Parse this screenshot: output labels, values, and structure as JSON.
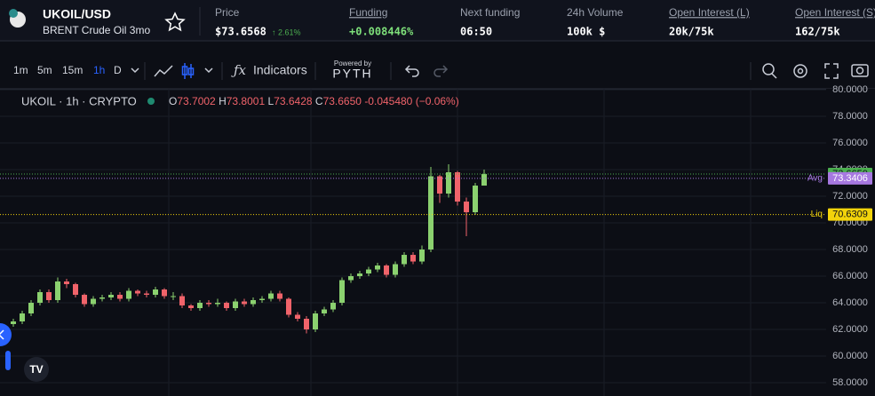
{
  "header": {
    "symbol": "UKOIL/USD",
    "subtitle": "BRENT Crude Oil 3mo",
    "stats": [
      {
        "label": "Price",
        "value": "$73.6568",
        "change": "↑ 2.61%"
      },
      {
        "label": "Funding",
        "value": "+0.008446%"
      },
      {
        "label": "Next funding",
        "value": "06:50"
      },
      {
        "label": "24h Volume",
        "value": "100k $"
      },
      {
        "label": "Open Interest (L)",
        "value": "20k/75k"
      },
      {
        "label": "Open Interest (S)",
        "value": "162/75k"
      }
    ]
  },
  "toolbar": {
    "intervals": [
      "1m",
      "5m",
      "15m",
      "1h",
      "D"
    ],
    "indicators": "Indicators",
    "powered_by": "Powered by",
    "provider": "PYTH"
  },
  "legend": {
    "symbol": "UKOIL · 1h · CRYPTO",
    "items": [
      {
        "key": "O",
        "value": "73.7002"
      },
      {
        "key": "H",
        "value": "73.8001"
      },
      {
        "key": "L",
        "value": "73.6428"
      },
      {
        "key": "C",
        "value": "73.6650"
      }
    ],
    "change": "-0.045480 (−0.06%)"
  },
  "chart_data": {
    "type": "candlestick",
    "up_color": "#8bd16f",
    "down_color": "#f0636a",
    "ylim": [
      57,
      80.07
    ],
    "yticks": [
      {
        "value": 58,
        "label": "58.0000"
      },
      {
        "value": 60,
        "label": "60.0000"
      },
      {
        "value": 62,
        "label": "62.0000"
      },
      {
        "value": 64,
        "label": "64.0000"
      },
      {
        "value": 66,
        "label": "66.0000"
      },
      {
        "value": 68,
        "label": "68.0000"
      },
      {
        "value": 70,
        "label": "70.0000"
      },
      {
        "value": 72,
        "label": "72.0000"
      },
      {
        "value": 74,
        "label": "74.0000"
      },
      {
        "value": 76,
        "label": "76.0000"
      },
      {
        "value": 78,
        "label": "78.0000"
      },
      {
        "value": 80,
        "label": "80.0000"
      }
    ],
    "grid": true,
    "open": [
      62.4,
      62.6,
      63.2,
      64.0,
      64.8,
      64.2,
      65.6,
      65.4,
      64.6,
      63.9,
      64.3,
      64.4,
      64.6,
      64.3,
      64.9,
      64.7,
      64.6,
      65.0,
      64.5,
      64.5,
      63.8,
      63.6,
      64.0,
      63.9,
      64.0,
      63.6,
      64.1,
      63.9,
      64.2,
      64.3,
      64.7,
      64.3,
      63.1,
      62.8,
      62.0,
      63.2,
      63.5,
      64.0,
      65.7,
      66.0,
      66.2,
      66.5,
      66.8,
      66.1,
      66.9,
      67.6,
      67.1,
      68.0,
      73.5,
      72.2,
      73.8,
      71.6,
      70.8,
      72.8
    ],
    "high": [
      62.8,
      63.4,
      64.2,
      65.0,
      65.0,
      65.9,
      65.8,
      65.5,
      64.7,
      64.5,
      64.6,
      64.8,
      64.8,
      65.1,
      65.0,
      64.9,
      65.2,
      65.1,
      64.8,
      64.7,
      63.9,
      64.2,
      64.2,
      64.3,
      64.1,
      64.3,
      64.3,
      64.4,
      64.5,
      64.9,
      64.9,
      64.4,
      63.3,
      63.0,
      63.4,
      63.7,
      64.2,
      65.9,
      66.2,
      66.4,
      66.7,
      67.0,
      66.9,
      67.1,
      67.8,
      67.8,
      68.3,
      74.2,
      73.6,
      74.4,
      73.9,
      71.9,
      73.0,
      74.0
    ],
    "low": [
      62.2,
      62.4,
      63.0,
      63.8,
      64.0,
      64.0,
      65.1,
      64.4,
      63.7,
      63.7,
      64.1,
      64.2,
      64.1,
      64.1,
      64.5,
      64.4,
      64.4,
      64.3,
      64.2,
      63.6,
      63.4,
      63.4,
      63.7,
      63.7,
      63.4,
      63.4,
      63.7,
      63.7,
      64.0,
      64.1,
      64.1,
      62.9,
      62.6,
      61.7,
      61.8,
      63.0,
      63.3,
      63.8,
      65.5,
      65.8,
      66.0,
      66.3,
      65.9,
      65.9,
      66.7,
      66.9,
      66.9,
      67.8,
      71.5,
      71.9,
      71.3,
      69.0,
      70.6,
      72.9
    ],
    "close": [
      62.6,
      63.2,
      64.0,
      64.8,
      64.2,
      65.6,
      65.4,
      64.6,
      63.9,
      64.3,
      64.4,
      64.6,
      64.3,
      64.9,
      64.7,
      64.6,
      65.0,
      64.5,
      64.5,
      63.8,
      63.6,
      64.0,
      63.9,
      64.0,
      63.6,
      64.1,
      63.9,
      64.2,
      64.3,
      64.7,
      64.3,
      63.1,
      62.8,
      62.0,
      63.2,
      63.5,
      64.0,
      65.7,
      66.0,
      66.2,
      66.5,
      66.8,
      66.1,
      66.9,
      67.6,
      67.1,
      68.0,
      73.5,
      72.2,
      73.8,
      71.6,
      70.8,
      72.8,
      73.67
    ],
    "price_lines": [
      {
        "value": 73.665,
        "value_label": "73.6650",
        "color": "#4caf50"
      },
      {
        "name": "Avg",
        "value": 73.3406,
        "color": "#a678e0"
      },
      {
        "name": "Liq",
        "value": 70.6309,
        "color": "#f2d30b"
      }
    ]
  }
}
